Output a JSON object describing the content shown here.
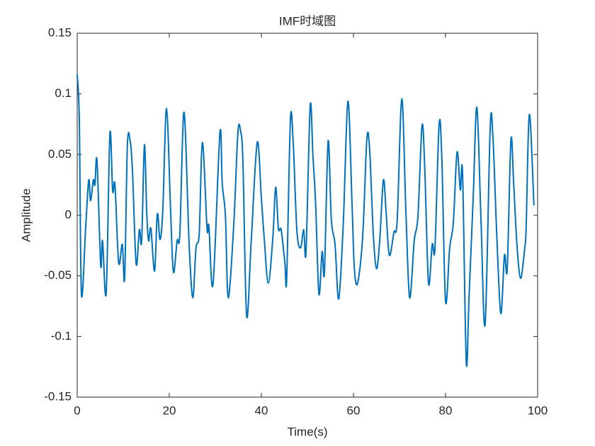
{
  "chart_data": {
    "type": "line",
    "title": "IMF时域图",
    "xlabel": "Time(s)",
    "ylabel": "Amplitude",
    "xlim": [
      0,
      100
    ],
    "ylim": [
      -0.15,
      0.15
    ],
    "xticks": [
      0,
      20,
      40,
      60,
      80,
      100
    ],
    "yticks": [
      -0.15,
      -0.1,
      -0.05,
      0,
      0.05,
      0.1,
      0.15
    ],
    "grid": false,
    "series": [
      {
        "color": "#0072BD",
        "x": [
          0,
          0.46,
          0.92,
          1.85,
          2.5,
          2.9,
          3.5,
          3.85,
          4.3,
          5.1,
          5.5,
          6.3,
          7.1,
          7.7,
          8.2,
          9.0,
          9.8,
          10.3,
          10.9,
          11.5,
          12.0,
          12.8,
          13.5,
          14.0,
          14.6,
          15.1,
          15.5,
          16.0,
          16.8,
          17.4,
          18.0,
          18.6,
          19.4,
          20.3,
          20.9,
          21.7,
          22.3,
          23.2,
          24.3,
          25.1,
          25.8,
          26.5,
          27.2,
          28.2,
          28.6,
          29.5,
          31.0,
          31.5,
          32.2,
          32.8,
          34.0,
          34.9,
          35.5,
          36.0,
          36.8,
          37.8,
          39.1,
          40.0,
          40.6,
          41.5,
          42.5,
          43.1,
          43.7,
          44.3,
          45.1,
          45.5,
          46.3,
          46.9,
          47.7,
          48.5,
          49.2,
          49.7,
          50.6,
          51.2,
          51.8,
          52.5,
          53.2,
          53.7,
          54.5,
          55.2,
          56.0,
          56.8,
          57.8,
          58.8,
          59.7,
          60.2,
          60.9,
          62.0,
          62.9,
          63.5,
          64.3,
          65.0,
          65.7,
          66.5,
          67.1,
          67.8,
          68.8,
          69.5,
          70.5,
          71.4,
          72.2,
          73.2,
          74.0,
          74.9,
          75.5,
          76.3,
          77.1,
          77.7,
          78.6,
          79.2,
          80.0,
          80.9,
          81.7,
          82.5,
          83.2,
          83.7,
          84.5,
          85.1,
          86.0,
          86.8,
          87.7,
          88.6,
          89.7,
          90.3,
          91.1,
          92.0,
          92.8,
          93.4,
          94.2,
          94.8,
          95.5,
          96.3,
          97.2,
          97.5,
          98.2,
          99.2
        ],
        "values": [
          0.116,
          0.078,
          -0.065,
          -0.009,
          0.029,
          0.012,
          0.029,
          0.025,
          0.045,
          -0.041,
          -0.021,
          -0.064,
          0.067,
          0.02,
          0.025,
          -0.039,
          -0.024,
          -0.052,
          0.058,
          0.061,
          0.037,
          -0.04,
          -0.012,
          -0.021,
          0.058,
          0.002,
          -0.021,
          -0.011,
          -0.046,
          0.001,
          -0.02,
          0.005,
          0.088,
          0.002,
          -0.047,
          -0.021,
          -0.015,
          0.085,
          -0.023,
          -0.068,
          -0.027,
          -0.015,
          0.06,
          -0.011,
          -0.009,
          -0.057,
          0.068,
          0.026,
          -0.001,
          -0.068,
          -0.008,
          0.068,
          0.069,
          0.043,
          -0.083,
          -0.021,
          0.06,
          0.014,
          -0.018,
          -0.056,
          -0.018,
          0.023,
          -0.011,
          -0.012,
          -0.039,
          -0.052,
          0.078,
          0.061,
          -0.012,
          -0.027,
          -0.012,
          -0.03,
          0.09,
          0.049,
          0.008,
          -0.065,
          -0.03,
          -0.047,
          0.061,
          -0.004,
          -0.024,
          -0.069,
          -0.006,
          0.094,
          0.008,
          -0.044,
          -0.056,
          -0.018,
          0.062,
          0.055,
          -0.015,
          -0.044,
          -0.021,
          0.029,
          0.002,
          -0.033,
          -0.014,
          -0.004,
          0.096,
          0.002,
          -0.068,
          -0.021,
          -0.001,
          0.074,
          0.037,
          -0.056,
          -0.024,
          -0.027,
          0.075,
          0.046,
          -0.071,
          -0.027,
          -0.006,
          0.052,
          0.021,
          0.034,
          -0.121,
          -0.068,
          0.014,
          0.089,
          -0.004,
          -0.09,
          0.072,
          0.064,
          -0.014,
          -0.081,
          -0.033,
          -0.044,
          0.062,
          0.026,
          -0.024,
          -0.052,
          -0.027,
          -0.011,
          0.083,
          0.008
        ]
      }
    ]
  }
}
